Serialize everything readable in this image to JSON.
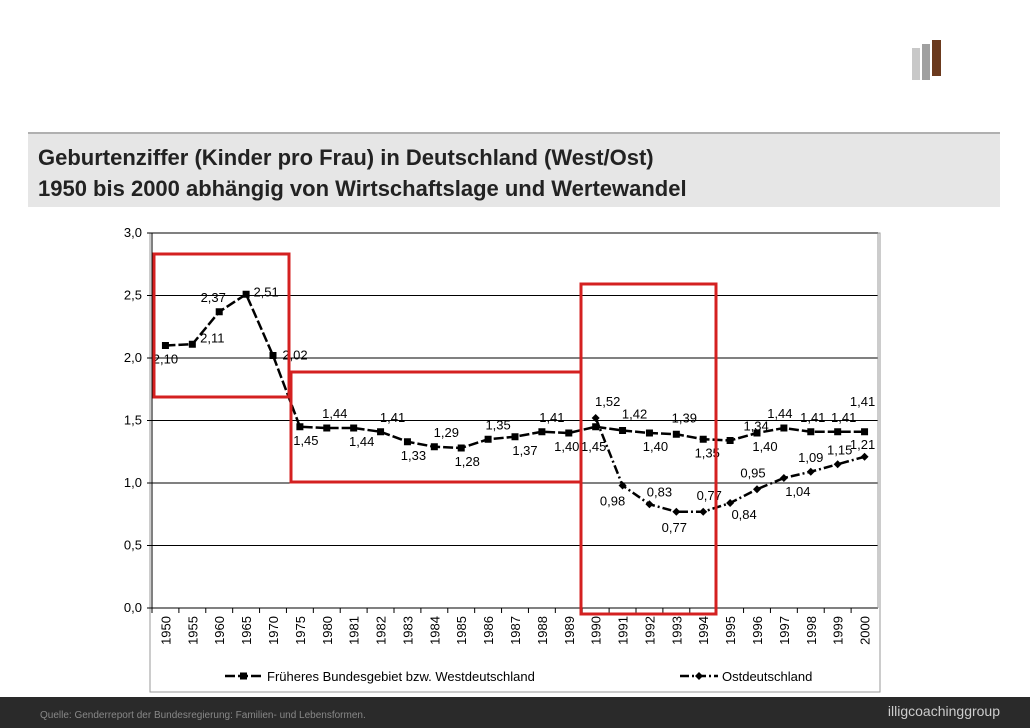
{
  "slide": {
    "title_line1": "Geburtenziffer (Kinder pro Frau) in Deutschland (West/Ost)",
    "title_line2": "1950 bis 2000 abhängig von Wirtschaftslage und Wertewandel",
    "source": "Quelle: Genderreport der Bundesregierung: Familien- und Lebensformen.",
    "logo": "illigcoachinggroup"
  },
  "chart_data": {
    "type": "line",
    "categories": [
      "1950",
      "1955",
      "1960",
      "1965",
      "1970",
      "1975",
      "1980",
      "1981",
      "1982",
      "1983",
      "1984",
      "1985",
      "1986",
      "1987",
      "1988",
      "1989",
      "1990",
      "1991",
      "1992",
      "1993",
      "1994",
      "1995",
      "1996",
      "1997",
      "1998",
      "1999",
      "2000"
    ],
    "series": [
      {
        "name": "Früheres Bundesgebiet bzw. Westdeutschland",
        "color": "#000000",
        "marker": "square",
        "values": [
          2.1,
          2.11,
          2.37,
          2.51,
          2.02,
          1.45,
          1.44,
          1.44,
          1.41,
          1.33,
          1.29,
          1.28,
          1.35,
          1.37,
          1.41,
          1.4,
          1.45,
          1.42,
          1.4,
          1.39,
          1.35,
          1.34,
          1.4,
          1.44,
          1.41,
          1.41,
          1.41
        ],
        "value_labels": [
          "2,10",
          "2,11",
          "2,37",
          "2,51",
          "2,02",
          "1,45",
          "1,44",
          "1,44",
          "1,41",
          "1,33",
          "1,29",
          "1,28",
          "1,35",
          "1,37",
          "1,41",
          "1,40",
          "1,45",
          "1,42",
          "1,40",
          "1,39",
          "1,35",
          "1,34",
          "1,40",
          "1,44",
          "1,41",
          "1,41",
          "1,41"
        ]
      },
      {
        "name": "Ostdeutschland",
        "color": "#000000",
        "marker": "diamond",
        "values": [
          null,
          null,
          null,
          null,
          null,
          null,
          null,
          null,
          null,
          null,
          null,
          null,
          null,
          null,
          null,
          null,
          1.52,
          0.98,
          0.83,
          0.77,
          0.77,
          0.84,
          0.95,
          1.04,
          1.09,
          1.15,
          1.21
        ],
        "value_labels": [
          null,
          null,
          null,
          null,
          null,
          null,
          null,
          null,
          null,
          null,
          null,
          null,
          null,
          null,
          null,
          null,
          "1,52",
          "0,98",
          "0,83",
          "0,77",
          "0,77",
          "0,84",
          "0,95",
          "1,04",
          "1,09",
          "1,15",
          "1,21"
        ]
      }
    ],
    "ylim": [
      0,
      3
    ],
    "yticks": [
      {
        "value": 0,
        "label": "0,0"
      },
      {
        "value": 0.5,
        "label": "0,5"
      },
      {
        "value": 1,
        "label": "1,0"
      },
      {
        "value": 1.5,
        "label": "1,5"
      },
      {
        "value": 2,
        "label": "2,0"
      },
      {
        "value": 2.5,
        "label": "2,5"
      },
      {
        "value": 3,
        "label": "3,0"
      }
    ],
    "grid": true,
    "legend": "bottom"
  }
}
